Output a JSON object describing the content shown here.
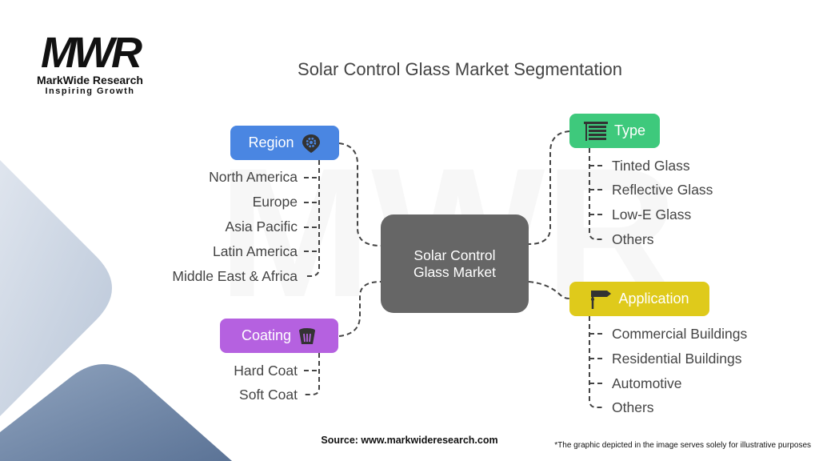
{
  "logo": {
    "mark": "MWR",
    "name": "MarkWide Research",
    "tagline": "Inspiring Growth"
  },
  "title": "Solar Control Glass Market Segmentation",
  "center": {
    "line1": "Solar Control",
    "line2": "Glass Market",
    "color": "#666666"
  },
  "categories": {
    "region": {
      "label": "Region",
      "icon": "location-gear-icon",
      "color": "#4a86e2",
      "items": [
        "North America",
        "Europe",
        "Asia Pacific",
        "Latin America",
        "Middle East & Africa"
      ]
    },
    "coating": {
      "label": "Coating",
      "icon": "bucket-icon",
      "color": "#b561e0",
      "items": [
        "Hard Coat",
        "Soft Coat"
      ]
    },
    "type": {
      "label": "Type",
      "icon": "blinds-icon",
      "color": "#3ec97c",
      "items": [
        "Tinted Glass",
        "Reflective Glass",
        "Low-E Glass",
        "Others"
      ]
    },
    "application": {
      "label": "Application",
      "icon": "signpost-icon",
      "color": "#dfca1b",
      "items": [
        "Commercial Buildings",
        "Residential Buildings",
        "Automotive",
        "Others"
      ]
    }
  },
  "source": "Source: www.markwideresearch.com",
  "footnote": "*The graphic depicted in the image serves solely for illustrative purposes"
}
